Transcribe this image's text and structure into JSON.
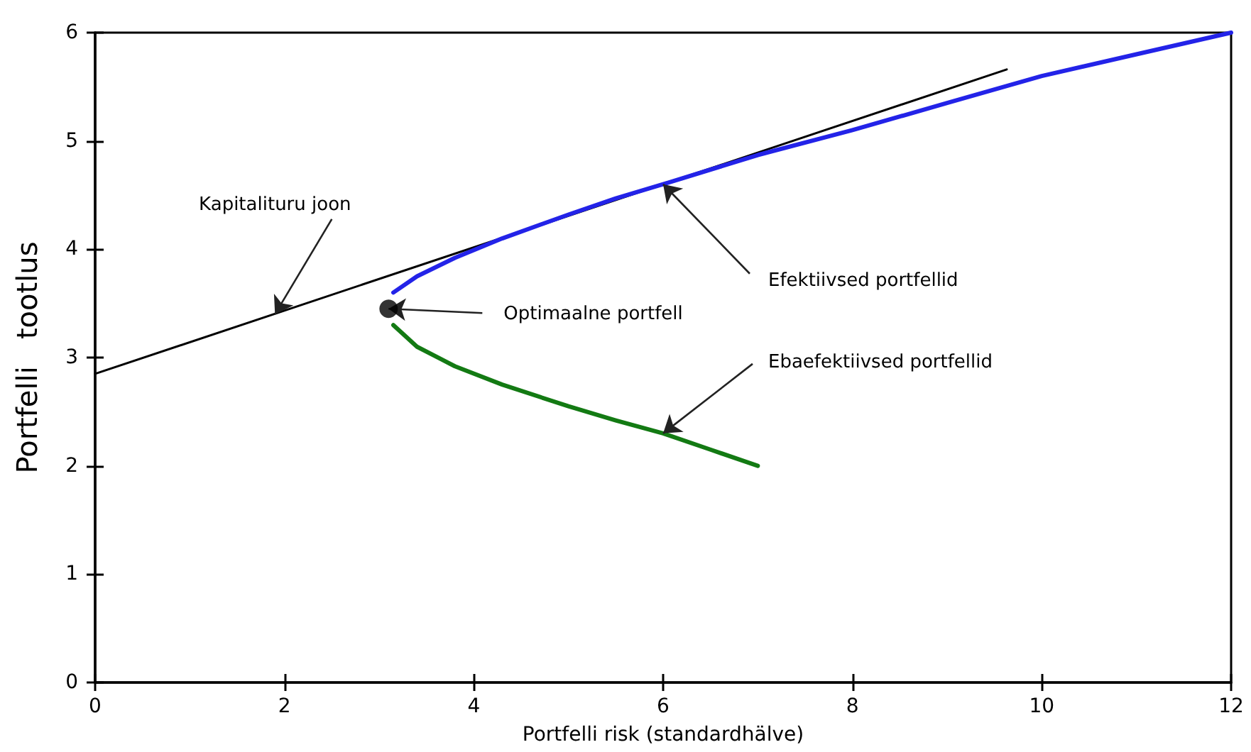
{
  "chart_data": {
    "type": "line",
    "xlabel": "Portfelli risk (standardhälve)",
    "ylabel": "Portfelli   tootlus",
    "xlim": [
      0,
      12
    ],
    "xticks": [
      0,
      2,
      4,
      6,
      8,
      10,
      12
    ],
    "ylim": [
      0,
      6
    ],
    "yticks": [
      0,
      1,
      2,
      3,
      4,
      5,
      6
    ],
    "grid": false,
    "marker": "none",
    "series": [
      {
        "color": "#000000",
        "x": [
          0,
          9.63
        ],
        "values": [
          2.85,
          5.66
        ]
      },
      {
        "color": "#2323e8",
        "x": [
          3.15,
          3.4,
          3.8,
          4.3,
          5,
          5.5,
          6,
          7,
          8,
          9,
          10,
          11,
          12
        ],
        "values": [
          3.6,
          3.75,
          3.92,
          4.1,
          4.32,
          4.47,
          4.6,
          4.87,
          5.1,
          5.35,
          5.6,
          5.8,
          6
        ]
      },
      {
        "color": "#137a13",
        "x": [
          3.15,
          3.4,
          3.8,
          4.3,
          5,
          5.5,
          6,
          6.5,
          7
        ],
        "values": [
          3.3,
          3.1,
          2.92,
          2.75,
          2.55,
          2.42,
          2.3,
          2.15,
          2
        ]
      },
      {
        "type": "scatter",
        "color": "#000000",
        "marker": "circle",
        "x": [
          3.1
        ],
        "values": [
          3.45
        ]
      }
    ],
    "annotations": [
      {
        "text": "Kapitalituru joon",
        "x": 1.9,
        "y": 3.4
      },
      {
        "text": "Optimaalne portfell",
        "x": 3.1,
        "y": 3.45
      },
      {
        "text": "Efektiivsed portfellid",
        "x": 6,
        "y": 4.6
      },
      {
        "text": "Ebaefektiivsed portfellid",
        "x": 6,
        "y": 2.3
      }
    ]
  }
}
